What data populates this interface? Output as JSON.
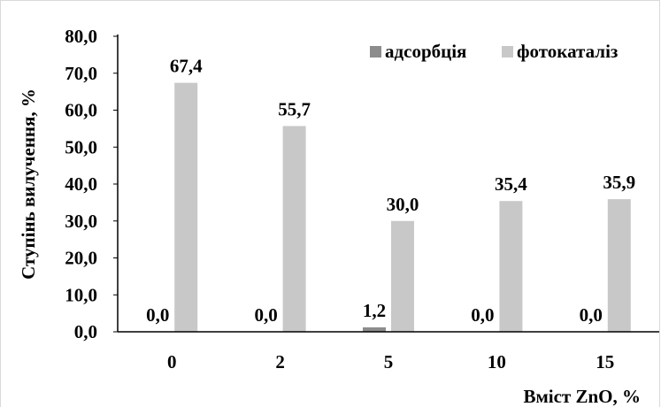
{
  "chart_data": {
    "type": "bar",
    "categories": [
      "0",
      "2",
      "5",
      "10",
      "15"
    ],
    "series": [
      {
        "name": "адсорбція",
        "values": [
          0.0,
          0.0,
          1.2,
          0.0,
          0.0
        ],
        "labels": [
          "0,0",
          "0,0",
          "1,2",
          "0,0",
          "0,0"
        ],
        "color": "#8c8c8c"
      },
      {
        "name": "фотокаталіз",
        "values": [
          67.4,
          55.7,
          30.0,
          35.4,
          35.9
        ],
        "labels": [
          "67,4",
          "55,7",
          "30,0",
          "35,4",
          "35,9"
        ],
        "color": "#c8c8c8"
      }
    ],
    "xlabel": "Вміст ZnO, %",
    "ylabel": "Ступінь вилучення, %",
    "ylim": [
      0,
      80
    ],
    "yticks": [
      0,
      10,
      20,
      30,
      40,
      50,
      60,
      70,
      80
    ],
    "ytick_labels": [
      "0,0",
      "10,0",
      "20,0",
      "30,0",
      "40,0",
      "50,0",
      "60,0",
      "70,0",
      "80,0"
    ],
    "grid": false,
    "legend_position": "top-right"
  }
}
